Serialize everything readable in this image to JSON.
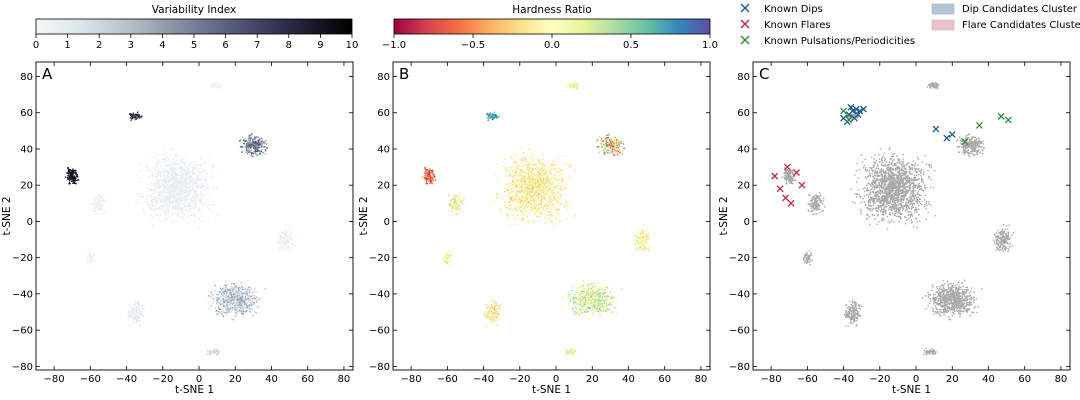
{
  "chart_data": [
    {
      "type": "scatter",
      "panel_label": "A",
      "xlabel": "t-SNE 1",
      "ylabel": "t-SNE 2",
      "xlim": [
        -90,
        85
      ],
      "ylim": [
        -82,
        88
      ],
      "xticks": [
        -80,
        -60,
        -40,
        -20,
        0,
        20,
        40,
        60,
        80
      ],
      "yticks": [
        -80,
        -60,
        -40,
        -20,
        0,
        20,
        40,
        60,
        80
      ],
      "colorbar": {
        "title": "Variability Index",
        "min": 0,
        "max": 10,
        "ticks": [
          0,
          1,
          2,
          3,
          4,
          5,
          6,
          7,
          8,
          9,
          10
        ],
        "colors": [
          "#f4f7f7",
          "#dbe6ea",
          "#b7c4cc",
          "#8b95a6",
          "#626a85",
          "#3e4261",
          "#1d1d31",
          "#000000"
        ]
      }
    },
    {
      "type": "scatter",
      "panel_label": "B",
      "xlabel": "t-SNE 1",
      "ylabel": "t-SNE 2",
      "xlim": [
        -90,
        85
      ],
      "ylim": [
        -82,
        88
      ],
      "xticks": [
        -80,
        -60,
        -40,
        -20,
        0,
        20,
        40,
        60,
        80
      ],
      "yticks": [
        -80,
        -60,
        -40,
        -20,
        0,
        20,
        40,
        60,
        80
      ],
      "colorbar": {
        "title": "Hardness Ratio",
        "min": -1.0,
        "max": 1.0,
        "ticks": [
          -1.0,
          -0.5,
          0.0,
          0.5,
          1.0
        ],
        "tick_labels": [
          "−1.0",
          "−0.5",
          "0.0",
          "0.5",
          "1.0"
        ],
        "colors": [
          "#9e0142",
          "#d53e4f",
          "#f46d43",
          "#fdae61",
          "#fee08b",
          "#ffffbf",
          "#e6f598",
          "#abdda4",
          "#66c2a5",
          "#3288bd",
          "#5e4fa2"
        ]
      }
    },
    {
      "type": "scatter",
      "panel_label": "C",
      "xlabel": "t-SNE 1",
      "ylabel": "t-SNE 2",
      "xlim": [
        -90,
        85
      ],
      "ylim": [
        -82,
        88
      ],
      "xticks": [
        -80,
        -60,
        -40,
        -20,
        0,
        20,
        40,
        60,
        80
      ],
      "yticks": [
        -80,
        -60,
        -40,
        -20,
        0,
        20,
        40,
        60,
        80
      ],
      "legend": [
        {
          "label": "Known Dips",
          "marker": "x",
          "color": "#1f5a8a"
        },
        {
          "label": "Known Flares",
          "marker": "x",
          "color": "#c0283f"
        },
        {
          "label": "Known Pulsations/Periodicities",
          "marker": "x",
          "color": "#2e8b3e"
        },
        {
          "label": "Dip Candidates Cluster",
          "marker": "patch",
          "color": "#b3c6d8"
        },
        {
          "label": "Flare Candidates Cluster",
          "marker": "patch",
          "color": "#eac4c8"
        }
      ],
      "known_dips": [
        [
          -40,
          57
        ],
        [
          -37,
          59
        ],
        [
          -35,
          61
        ],
        [
          -33,
          62
        ],
        [
          -31,
          61
        ],
        [
          -38,
          55
        ],
        [
          -34,
          57
        ],
        [
          -29,
          62
        ],
        [
          -36,
          63
        ],
        [
          -32,
          59
        ],
        [
          11,
          51
        ],
        [
          17,
          46
        ],
        [
          20,
          48
        ]
      ],
      "known_flares": [
        [
          -78,
          25
        ],
        [
          -75,
          18
        ],
        [
          -72,
          13
        ],
        [
          -69,
          10
        ],
        [
          -66,
          27
        ],
        [
          -63,
          20
        ],
        [
          -71,
          30
        ]
      ],
      "known_pulsations": [
        [
          -40,
          61
        ],
        [
          -37,
          56
        ],
        [
          27,
          44
        ],
        [
          35,
          53
        ],
        [
          47,
          58
        ],
        [
          51,
          56
        ]
      ]
    }
  ]
}
